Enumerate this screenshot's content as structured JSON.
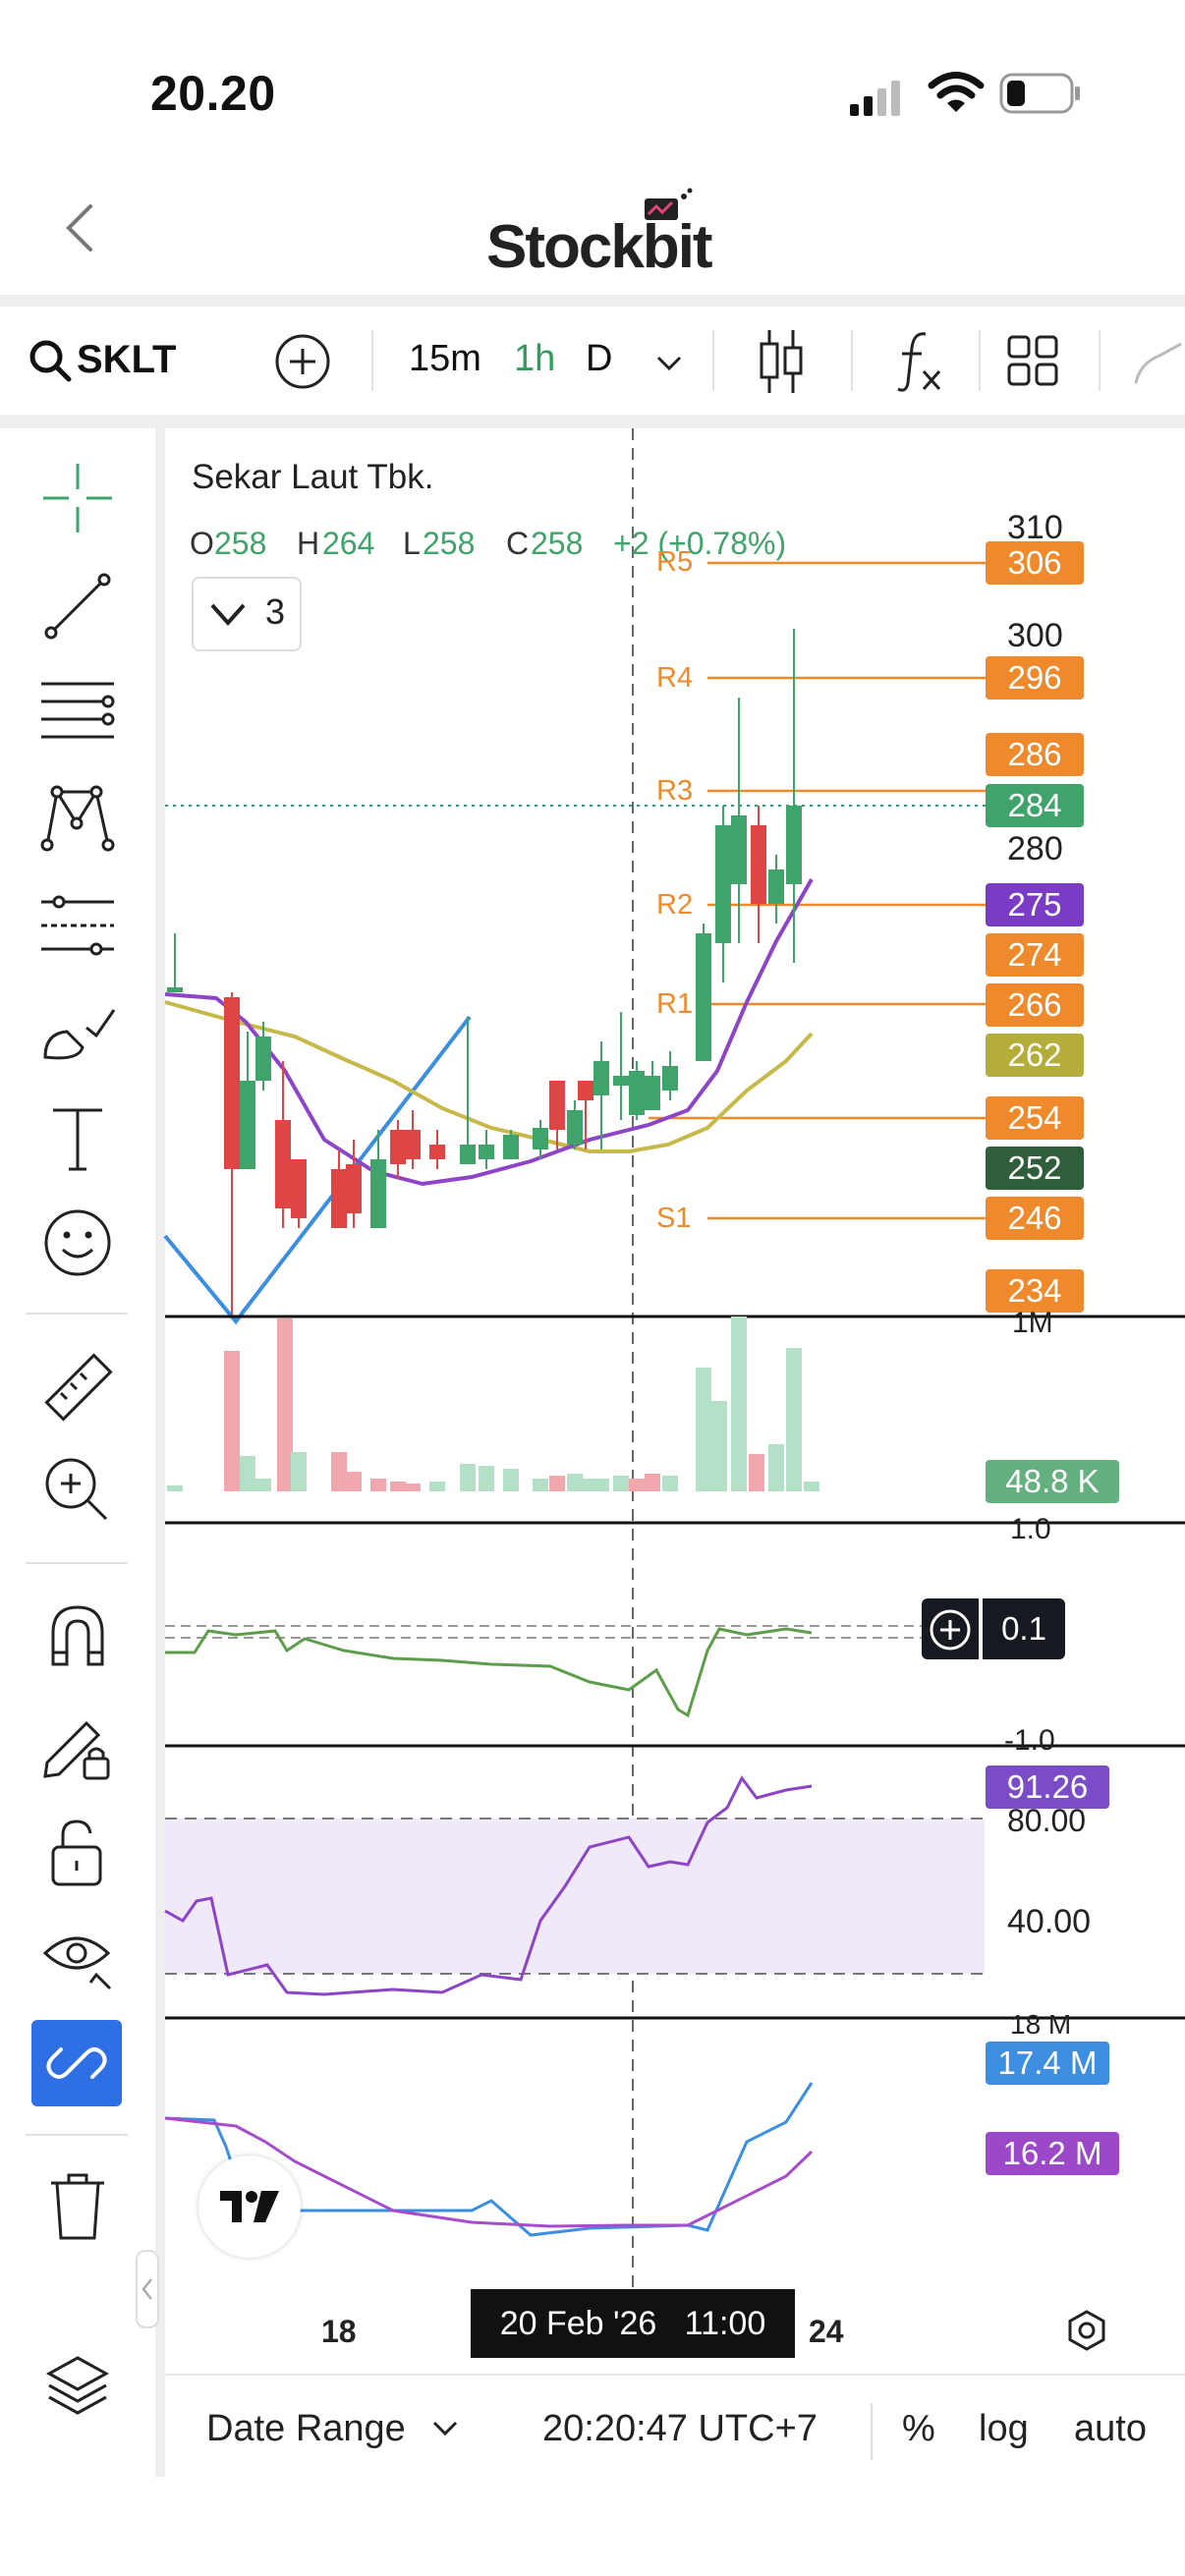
{
  "status_bar": {
    "time": "20.20"
  },
  "header": {
    "app_name": "Stockbit"
  },
  "toolbar": {
    "ticker": "SKLT",
    "timeframes": [
      "15m",
      "1h",
      "D"
    ],
    "active_timeframe": "1h"
  },
  "chart": {
    "company": "Sekar Laut Tbk.",
    "ohlc": {
      "o_label": "O",
      "o": "258",
      "h_label": "H",
      "h": "264",
      "l_label": "L",
      "l": "258",
      "c_label": "C",
      "c": "258",
      "change": "+2 (+0.78%)"
    },
    "indicator_count": "3",
    "price_axis": [
      "310",
      "300",
      "280"
    ],
    "badges": {
      "r5": "306",
      "r4": "296",
      "r3": "286",
      "last_price": "284",
      "r2_line": "275",
      "b274": "274",
      "r1": "266",
      "ma": "262",
      "pivot": "254",
      "cur": "252",
      "s1": "246",
      "b234": "234"
    },
    "pivot_labels": [
      "R5",
      "R4",
      "R3",
      "R2",
      "R1",
      "S1"
    ],
    "volume": {
      "axis_top": "1M",
      "value": "48.8 K"
    },
    "osc": {
      "axis_top": "1.0",
      "axis_bottom": "-1.0",
      "value": "0.1"
    },
    "rsi": {
      "axis_top": "80.00",
      "axis_mid": "40.00",
      "value": "91.26"
    },
    "obv": {
      "axis_top": "18 M",
      "value_blue": "17.4 M",
      "value_purple": "16.2 M"
    },
    "time_axis": {
      "left": "18",
      "right": "24",
      "crosshair": "20 Feb '26   11:00"
    }
  },
  "bottom_bar": {
    "date_range": "Date Range",
    "clock": "20:20:47 UTC+7",
    "percent": "%",
    "log": "log",
    "auto": "auto"
  },
  "colors": {
    "green": "#3fa46a",
    "red": "#e04545",
    "orange": "#ee8a2c",
    "purple": "#8e44c6",
    "olive": "#c6b94a",
    "blue": "#3b8ee0",
    "dark_green": "#2e5e3a",
    "badge_purple": "#7a3cc4",
    "badge_olive": "#b5ad3a"
  },
  "icons": {
    "sidebar": [
      "crosshair-icon",
      "trend-line-icon",
      "fib-lines-icon",
      "pattern-icon",
      "prediction-icon",
      "brush-icon",
      "text-icon",
      "emoji-icon",
      "ruler-icon",
      "zoom-in-icon",
      "magnet-icon",
      "lock-drawing-icon",
      "unlock-icon",
      "eye-icon",
      "link-icon",
      "trash-icon",
      "layers-icon"
    ]
  }
}
